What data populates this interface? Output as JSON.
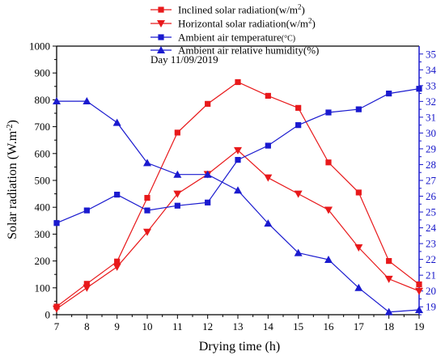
{
  "chart_data": {
    "type": "line",
    "x": [
      7,
      8,
      9,
      10,
      11,
      12,
      13,
      14,
      15,
      16,
      17,
      18,
      19
    ],
    "xlabel": "Drying time (h)",
    "xlim": [
      7,
      19
    ],
    "ylabel_left": "Solar radiation (W.m",
    "ylabel_left_sup": "-2",
    "ylabel_left_close": ")",
    "ylim_left": [
      0,
      1000
    ],
    "ylim_right": [
      18.5,
      35.5
    ],
    "x_ticks": [
      "7",
      "8",
      "9",
      "10",
      "11",
      "12",
      "13",
      "14",
      "15",
      "16",
      "17",
      "18",
      "19"
    ],
    "y_ticks_left": [
      "0",
      "100",
      "200",
      "300",
      "400",
      "500",
      "600",
      "700",
      "800",
      "900",
      "1000"
    ],
    "y_ticks_right": [
      "19",
      "20",
      "21",
      "22",
      "23",
      "24",
      "25",
      "26",
      "27",
      "28",
      "29",
      "30",
      "31",
      "32",
      "33",
      "34",
      "35"
    ],
    "grid": false,
    "legend_placement": "top-center",
    "annotation": "Day 11/09/2019",
    "series": [
      {
        "name": "Inclined solar radiation(w/m",
        "name_sup": "2",
        "name_close": ")",
        "axis": "left",
        "color": "#e8191b",
        "marker": "square",
        "values": [
          30,
          115,
          198,
          435,
          678,
          785,
          866,
          815,
          770,
          567,
          455,
          200,
          113
        ]
      },
      {
        "name": "Horizontal solar radiation(w/m",
        "name_sup": "2",
        "name_close": ")",
        "axis": "left",
        "color": "#e8191b",
        "marker": "triangle-down",
        "values": [
          22,
          100,
          178,
          308,
          450,
          523,
          612,
          510,
          450,
          390,
          250,
          133,
          88
        ]
      },
      {
        "name": "Ambient air temperature",
        "name_sup": "(°C)",
        "name_close": "",
        "axis": "right",
        "color": "#1a1acf",
        "marker": "square",
        "values": [
          24.3,
          25.1,
          26.1,
          25.1,
          25.4,
          25.6,
          28.3,
          29.2,
          30.5,
          31.3,
          31.5,
          32.5,
          32.8
        ]
      },
      {
        "name": "Ambient air relative humidity(%)",
        "name_sup": "",
        "name_close": "",
        "axis": "left",
        "color": "#1a1acf",
        "marker": "triangle-up",
        "values": [
          795,
          795,
          715,
          565,
          522,
          522,
          463,
          340,
          230,
          205,
          100,
          10,
          18
        ]
      }
    ]
  }
}
